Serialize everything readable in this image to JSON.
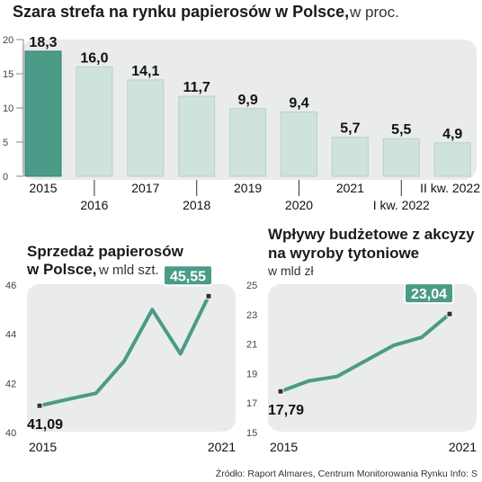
{
  "bar_chart": {
    "title_bold": "Szara strefa na rynku papierosów w Polsce,",
    "title_unit": "w proc."
  },
  "line_chart_1": {
    "title_line1": "Sprzedaż papierosów",
    "title_line2_bold": "w Polsce,",
    "title_line2_unit": "w mld szt."
  },
  "line_chart_2": {
    "title_line1": "Wpływy budżetowe z akcyzy",
    "title_line2": "na wyroby tytoniowe",
    "title_unit": "w mld zł"
  },
  "source": "Źródło: Raport Almares, Centrum Monitorowania Rynku   Info: S",
  "colors": {
    "bar_highlight": "#4a9b87",
    "bar_normal": "#cfe3da",
    "panel_bg": "#e9ecea",
    "line": "#4a9b87",
    "label_box": "#4a9b87"
  },
  "chart_data": [
    {
      "type": "bar",
      "categories": [
        "2015",
        "2016",
        "2017",
        "2018",
        "2019",
        "2020",
        "2021",
        "I kw. 2022",
        "II kw. 2022"
      ],
      "values": [
        18.3,
        16.0,
        14.1,
        11.7,
        9.9,
        9.4,
        5.7,
        5.5,
        4.9
      ],
      "value_labels": [
        "18,3",
        "16,0",
        "14,1",
        "11,7",
        "9,9",
        "9,4",
        "5,7",
        "5,5",
        "4,9"
      ],
      "ylim": [
        0,
        20
      ],
      "yticks": [
        0,
        5,
        10,
        15,
        20
      ],
      "grid": false
    },
    {
      "type": "line",
      "x": [
        2015,
        2016,
        2017,
        2018,
        2019,
        2020,
        2021
      ],
      "values": [
        41.09,
        41.35,
        41.6,
        42.9,
        45.0,
        43.2,
        45.55
      ],
      "xticklabels": [
        "2015",
        "2021"
      ],
      "ylim": [
        40,
        46
      ],
      "yticks": [
        40,
        42,
        44,
        46
      ],
      "start_label": "41,09",
      "end_label": "45,55"
    },
    {
      "type": "line",
      "x": [
        2015,
        2016,
        2017,
        2018,
        2019,
        2020,
        2021
      ],
      "values": [
        17.79,
        18.5,
        18.8,
        19.85,
        20.9,
        21.45,
        23.04
      ],
      "xticklabels": [
        "2015",
        "2021"
      ],
      "ylim": [
        15,
        25
      ],
      "yticks": [
        15,
        17,
        19,
        21,
        23,
        25
      ],
      "start_label": "17,79",
      "end_label": "23,04"
    }
  ]
}
